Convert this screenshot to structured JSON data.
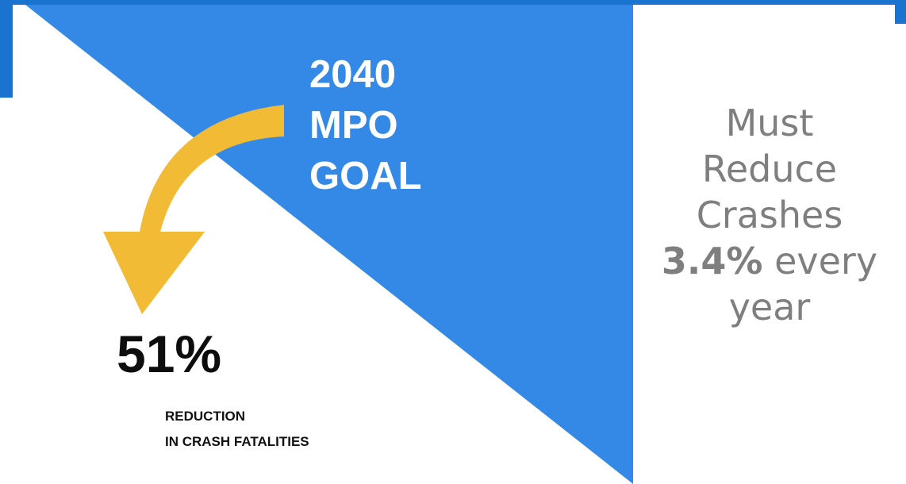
{
  "goal": {
    "line1": "2040",
    "line2": "MPO",
    "line3": "GOAL"
  },
  "stat": {
    "value": "51%",
    "caption_line1": "REDUCTION",
    "caption_line2": "IN CRASH FATALITIES"
  },
  "side_note": {
    "line1": "Must",
    "line2": "Reduce",
    "line3": "Crashes",
    "rate": "3.4%",
    "rate_suffix": " every",
    "line5": "year"
  },
  "colors": {
    "brand_blue": "#1a73cf",
    "triangle_blue": "#3488e6",
    "arrow_yellow": "#f2bb35",
    "side_text_gray": "#7f7f7f"
  },
  "icons": {
    "arrow": "curved-down-arrow-icon"
  }
}
